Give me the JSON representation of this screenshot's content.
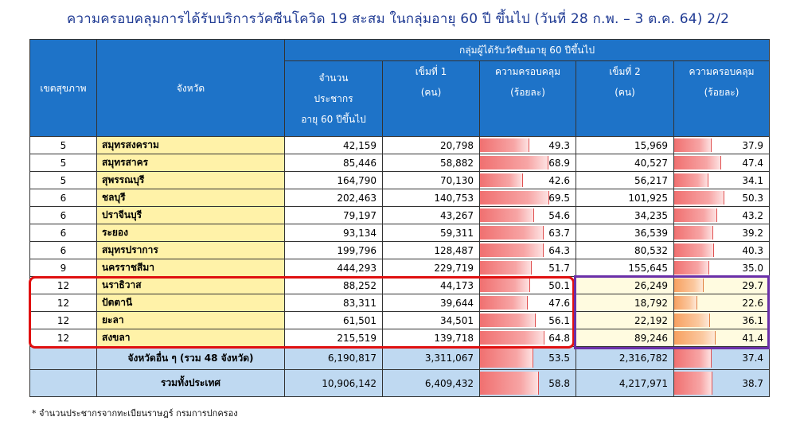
{
  "title": "ความครอบคลุมการได้รับบริการวัคซีนโควิด 19 สะสม ในกลุ่มอายุ 60 ปี ขึ้นไป (วันที่ 28 ก.พ. – 3 ต.ค. 64)   2/2",
  "header": {
    "region": "เขตสุขภาพ",
    "province": "จังหวัด",
    "group": "กลุ่มผู้ได้รับวัคซีนอายุ 60 ปีขึ้นไป",
    "pop": [
      "จำนวน",
      "ประชากร",
      "อายุ 60 ปีขึ้นไป"
    ],
    "dose1": [
      "เข็มที่ 1",
      "(คน)"
    ],
    "cov1": [
      "ความครอบคลุม",
      "(ร้อยละ)"
    ],
    "dose2": [
      "เข็มที่ 2",
      "(คน)"
    ],
    "cov2": [
      "ความครอบคลุม",
      "(ร้อยละ)"
    ]
  },
  "rows": [
    {
      "region": "5",
      "province": "สมุทรสงคราม",
      "pop": "42,159",
      "dose1": "20,798",
      "cov1": "49.3",
      "dose2": "15,969",
      "cov2": "37.9"
    },
    {
      "region": "5",
      "province": "สมุทรสาคร",
      "pop": "85,446",
      "dose1": "58,882",
      "cov1": "68.9",
      "dose2": "40,527",
      "cov2": "47.4"
    },
    {
      "region": "5",
      "province": "สุพรรณบุรี",
      "pop": "164,790",
      "dose1": "70,130",
      "cov1": "42.6",
      "dose2": "56,217",
      "cov2": "34.1"
    },
    {
      "region": "6",
      "province": "ชลบุรี",
      "pop": "202,463",
      "dose1": "140,753",
      "cov1": "69.5",
      "dose2": "101,925",
      "cov2": "50.3"
    },
    {
      "region": "6",
      "province": "ปราจีนบุรี",
      "pop": "79,197",
      "dose1": "43,267",
      "cov1": "54.6",
      "dose2": "34,235",
      "cov2": "43.2"
    },
    {
      "region": "6",
      "province": "ระยอง",
      "pop": "93,134",
      "dose1": "59,311",
      "cov1": "63.7",
      "dose2": "36,539",
      "cov2": "39.2"
    },
    {
      "region": "6",
      "province": "สมุทรปราการ",
      "pop": "199,796",
      "dose1": "128,487",
      "cov1": "64.3",
      "dose2": "80,532",
      "cov2": "40.3"
    },
    {
      "region": "9",
      "province": "นครราชสีมา",
      "pop": "444,293",
      "dose1": "229,719",
      "cov1": "51.7",
      "dose2": "155,645",
      "cov2": "35.0"
    },
    {
      "region": "12",
      "province": "นราธิวาส",
      "pop": "88,252",
      "dose1": "44,173",
      "cov1": "50.1",
      "dose2": "26,249",
      "cov2": "29.7"
    },
    {
      "region": "12",
      "province": "ปัตตานี",
      "pop": "83,311",
      "dose1": "39,644",
      "cov1": "47.6",
      "dose2": "18,792",
      "cov2": "22.6"
    },
    {
      "region": "12",
      "province": "ยะลา",
      "pop": "61,501",
      "dose1": "34,501",
      "cov1": "56.1",
      "dose2": "22,192",
      "cov2": "36.1"
    },
    {
      "region": "12",
      "province": "สงขลา",
      "pop": "215,519",
      "dose1": "139,718",
      "cov1": "64.8",
      "dose2": "89,246",
      "cov2": "41.4"
    }
  ],
  "others": {
    "label": "จังหวัดอื่น ๆ (รวม 48 จังหวัด)",
    "pop": "6,190,817",
    "dose1": "3,311,067",
    "cov1": "53.5",
    "dose2": "2,316,782",
    "cov2": "37.4"
  },
  "total": {
    "label": "รวมทั้งประเทศ",
    "pop": "10,906,142",
    "dose1": "6,409,432",
    "cov1": "58.8",
    "dose2": "4,217,971",
    "cov2": "38.7"
  },
  "footnote": "* จำนวนประชากรจากทะเบียนราษฎร์ กรมการปกครอง",
  "colors": {
    "header_bg": "#1e73c8",
    "province_bg": "#fff2a8",
    "summary_bg": "#bfd9f1",
    "highlight_red": "#e01010",
    "highlight_purple": "#6a2fa8"
  }
}
